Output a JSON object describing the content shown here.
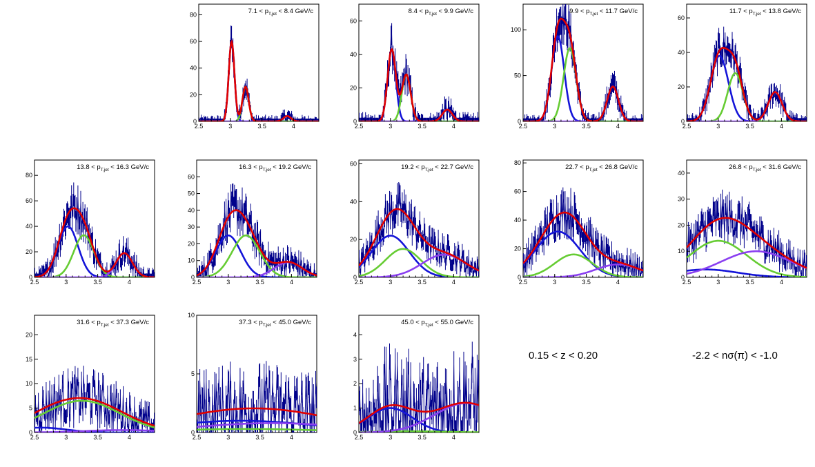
{
  "colors": {
    "data": "#00008b",
    "total_fit": "#e00000",
    "pion": "#1414d8",
    "kaon": "#66cc33",
    "proton": "#8a3ff0"
  },
  "annotations": {
    "z_range": "0.15 < z < 0.20",
    "nsigma_range": "-2.2 < nσ(π) < -1.0"
  },
  "chart_data": [
    {
      "type": "histogram",
      "title": "7.1 < pT,jet < 8.4 GeV/c",
      "xlim": [
        2.5,
        4.4
      ],
      "ylim": [
        0,
        88
      ],
      "yticks": [
        0,
        20,
        40,
        60,
        80
      ],
      "xticks": [
        2.5,
        3,
        3.5,
        4
      ],
      "series": [
        {
          "mean": 3.02,
          "sigma": 0.045,
          "amp": 60
        },
        {
          "mean": 3.24,
          "sigma": 0.05,
          "amp": 26
        },
        {
          "mean": 3.9,
          "sigma": 0.06,
          "amp": 4
        }
      ],
      "noise": 5
    },
    {
      "type": "histogram",
      "title": "8.4 < pT,jet < 9.9 GeV/c",
      "xlim": [
        2.5,
        4.4
      ],
      "ylim": [
        0,
        70
      ],
      "yticks": [
        0,
        20,
        40,
        60
      ],
      "xticks": [
        2.5,
        3,
        3.5,
        4
      ],
      "series": [
        {
          "mean": 3.02,
          "sigma": 0.065,
          "amp": 43
        },
        {
          "mean": 3.25,
          "sigma": 0.07,
          "amp": 28
        },
        {
          "mean": 3.9,
          "sigma": 0.08,
          "amp": 7
        }
      ],
      "noise": 6
    },
    {
      "type": "histogram",
      "title": "9.9 < pT,jet < 11.7 GeV/c",
      "xlim": [
        2.5,
        4.4
      ],
      "ylim": [
        0,
        128
      ],
      "yticks": [
        0,
        50,
        100
      ],
      "xticks": [
        2.5,
        3,
        3.5,
        4
      ],
      "series": [
        {
          "mean": 3.05,
          "sigma": 0.1,
          "amp": 93
        },
        {
          "mean": 3.24,
          "sigma": 0.1,
          "amp": 80
        },
        {
          "mean": 3.92,
          "sigma": 0.09,
          "amp": 38
        }
      ],
      "noise": 8
    },
    {
      "type": "histogram",
      "title": "11.7 < pT,jet < 13.8 GeV/c",
      "xlim": [
        2.5,
        4.4
      ],
      "ylim": [
        0,
        68
      ],
      "yticks": [
        0,
        20,
        40,
        60
      ],
      "xticks": [
        2.5,
        3,
        3.5,
        4
      ],
      "series": [
        {
          "mean": 3.02,
          "sigma": 0.14,
          "amp": 38
        },
        {
          "mean": 3.27,
          "sigma": 0.12,
          "amp": 28
        },
        {
          "mean": 3.9,
          "sigma": 0.11,
          "amp": 17
        }
      ],
      "noise": 5
    },
    {
      "type": "histogram",
      "title": "13.8 < pT,jet < 16.3 GeV/c",
      "xlim": [
        2.5,
        4.4
      ],
      "ylim": [
        0,
        92
      ],
      "yticks": [
        0,
        20,
        40,
        60,
        80
      ],
      "xticks": [
        2.5,
        3,
        3.5,
        4
      ],
      "series": [
        {
          "mean": 3.03,
          "sigma": 0.16,
          "amp": 40
        },
        {
          "mean": 3.28,
          "sigma": 0.16,
          "amp": 33
        },
        {
          "mean": 3.92,
          "sigma": 0.13,
          "amp": 19
        }
      ],
      "noise": 8
    },
    {
      "type": "histogram",
      "title": "16.3 < pT,jet < 19.2 GeV/c",
      "xlim": [
        2.5,
        4.4
      ],
      "ylim": [
        0,
        70
      ],
      "yticks": [
        0,
        10,
        20,
        30,
        40,
        50,
        60
      ],
      "xticks": [
        2.5,
        3,
        3.5,
        4
      ],
      "series": [
        {
          "mean": 3.0,
          "sigma": 0.2,
          "amp": 25
        },
        {
          "mean": 3.28,
          "sigma": 0.22,
          "amp": 25
        },
        {
          "mean": 3.95,
          "sigma": 0.22,
          "amp": 9
        }
      ],
      "noise": 7
    },
    {
      "type": "histogram",
      "title": "19.2 < pT,jet < 22.7 GeV/c",
      "xlim": [
        2.5,
        4.4
      ],
      "ylim": [
        0,
        62
      ],
      "yticks": [
        0,
        20,
        40,
        60
      ],
      "xticks": [
        2.5,
        3,
        3.5,
        4
      ],
      "series": [
        {
          "mean": 3.0,
          "sigma": 0.3,
          "amp": 22
        },
        {
          "mean": 3.2,
          "sigma": 0.28,
          "amp": 15
        },
        {
          "mean": 3.85,
          "sigma": 0.35,
          "amp": 12
        }
      ],
      "noise": 6
    },
    {
      "type": "histogram",
      "title": "22.7 < pT,jet < 26.8 GeV/c",
      "xlim": [
        2.5,
        4.4
      ],
      "ylim": [
        0,
        82
      ],
      "yticks": [
        0,
        20,
        40,
        60,
        80
      ],
      "xticks": [
        2.5,
        3,
        3.5,
        4
      ],
      "series": [
        {
          "mean": 3.05,
          "sigma": 0.35,
          "amp": 32
        },
        {
          "mean": 3.3,
          "sigma": 0.3,
          "amp": 16
        },
        {
          "mean": 4.0,
          "sigma": 0.35,
          "amp": 9
        }
      ],
      "noise": 8
    },
    {
      "type": "histogram",
      "title": "26.8 < pT,jet < 31.6 GeV/c",
      "xlim": [
        2.5,
        4.4
      ],
      "ylim": [
        0,
        45
      ],
      "yticks": [
        0,
        10,
        20,
        30,
        40
      ],
      "xticks": [
        2.5,
        3,
        3.5,
        4
      ],
      "series": [
        {
          "mean": 2.8,
          "sigma": 0.5,
          "amp": 3
        },
        {
          "mean": 3.0,
          "sigma": 0.45,
          "amp": 14
        },
        {
          "mean": 3.6,
          "sigma": 0.55,
          "amp": 10
        }
      ],
      "noise": 5
    },
    {
      "type": "histogram",
      "title": "31.6 < pT,jet < 37.3 GeV/c",
      "xlim": [
        2.5,
        4.4
      ],
      "ylim": [
        0,
        24
      ],
      "yticks": [
        0,
        5,
        10,
        15,
        20
      ],
      "xticks": [
        2.5,
        3,
        3.5,
        4
      ],
      "series": [
        {
          "mean": 2.6,
          "sigma": 0.4,
          "amp": 1
        },
        {
          "mean": 3.25,
          "sigma": 0.6,
          "amp": 6.5
        },
        {
          "mean": 3.9,
          "sigma": 0.6,
          "amp": 0.5
        }
      ],
      "noise": 4
    },
    {
      "type": "histogram",
      "title": "37.3 < pT,jet < 45.0 GeV/c",
      "xlim": [
        2.5,
        4.4
      ],
      "ylim": [
        0,
        10
      ],
      "yticks": [
        0,
        5,
        10
      ],
      "xticks": [
        2.5,
        3,
        3.5,
        4
      ],
      "series": [
        {
          "mean": 3.2,
          "sigma": 1.2,
          "amp": 1.0
        },
        {
          "mean": 3.3,
          "sigma": 1.2,
          "amp": 0.3
        },
        {
          "mean": 3.7,
          "sigma": 1.2,
          "amp": 0.8
        }
      ],
      "noise": 3
    },
    {
      "type": "histogram",
      "title": "45.0 < pT,jet < 55.0 GeV/c",
      "xlim": [
        2.5,
        4.4
      ],
      "ylim": [
        0,
        4.8
      ],
      "yticks": [
        0,
        1,
        2,
        3,
        4
      ],
      "xticks": [
        2.5,
        3,
        3.5,
        4
      ],
      "series": [
        {
          "mean": 3.0,
          "sigma": 0.35,
          "amp": 1.0
        },
        {
          "mean": 3.3,
          "sigma": 0.6,
          "amp": 0.05
        },
        {
          "mean": 4.2,
          "sigma": 0.5,
          "amp": 1.2
        }
      ],
      "noise": 1.8
    }
  ]
}
